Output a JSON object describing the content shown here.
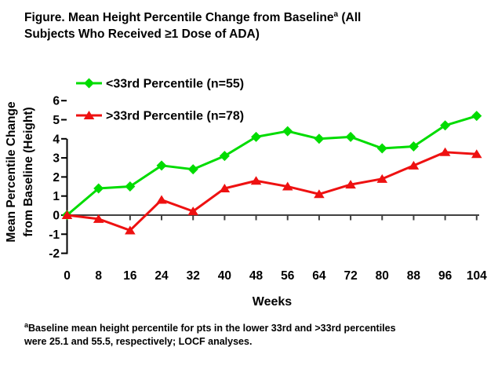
{
  "figure": {
    "title": {
      "line1_main": "Figure. Mean Height Percentile Change from Baseline",
      "line1_sup": "a",
      "line1_end": " (All",
      "line2": "Subjects Who Received ≥1 Dose of ADA)"
    },
    "footnote": {
      "sup": "a",
      "line1": "Baseline mean height percentile for pts in the lower 33rd and >33rd percentiles",
      "line2": "were 25.1 and 55.5, respectively; LOCF analyses."
    }
  },
  "chart_data": {
    "type": "line",
    "x": [
      0,
      8,
      16,
      24,
      32,
      40,
      48,
      56,
      64,
      72,
      80,
      88,
      96,
      104
    ],
    "xlabel": "Weeks",
    "ylabel": "Mean Percentile Change from Baseline (Height)",
    "ylabel_lines": [
      "Mean Percentile Change",
      "from Baseline (Height)"
    ],
    "ylim": [
      -2,
      6
    ],
    "yticks": [
      6,
      5,
      4,
      3,
      2,
      1,
      0,
      -1,
      -2
    ],
    "xlim": [
      0,
      104
    ],
    "grid": false,
    "legend_position": "top-left",
    "axis_color": "#000000",
    "zero_line_color": "#404040",
    "series": [
      {
        "name": "<33rd Percentile (n=55)",
        "color": "#00DC00",
        "marker": "diamond",
        "values": [
          0,
          1.4,
          1.5,
          2.6,
          2.4,
          3.1,
          4.1,
          4.4,
          4.0,
          4.1,
          3.5,
          3.6,
          4.7,
          5.2
        ]
      },
      {
        "name": ">33rd Percentile (n=78)",
        "color": "#EE1111",
        "marker": "triangle",
        "values": [
          0,
          -0.2,
          -0.8,
          0.8,
          0.2,
          1.4,
          1.8,
          1.5,
          1.1,
          1.6,
          1.9,
          2.6,
          3.3,
          3.2
        ]
      }
    ]
  }
}
